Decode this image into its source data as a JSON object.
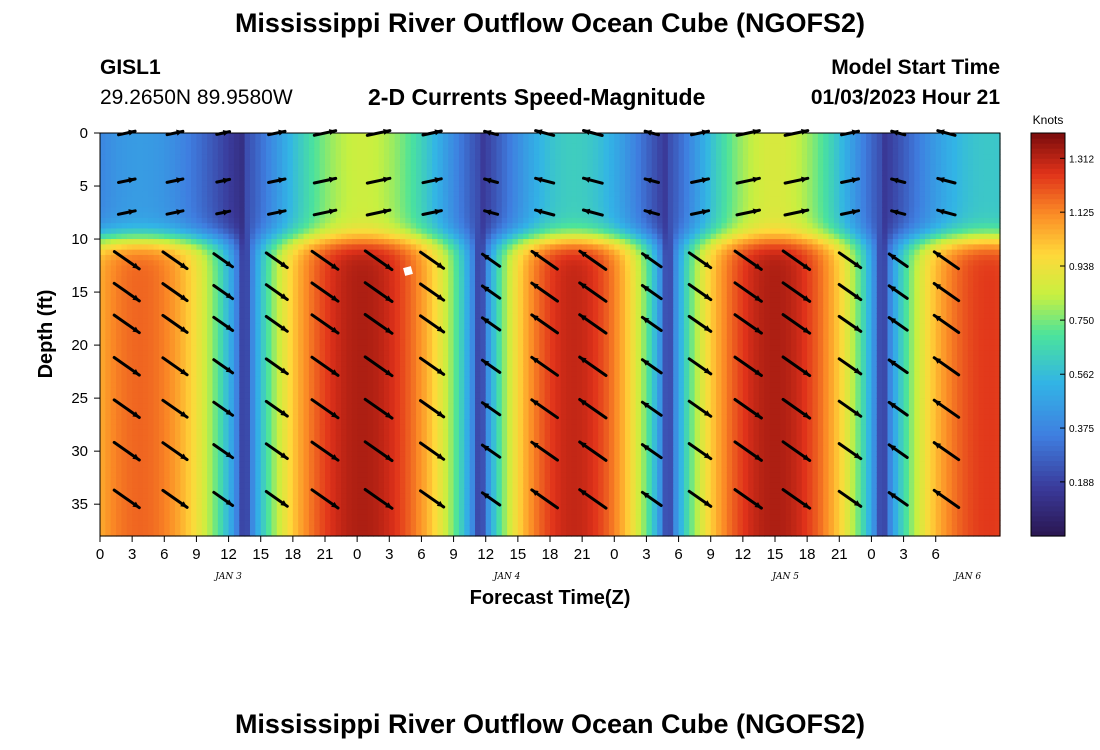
{
  "header": {
    "title": "Mississippi River Outflow Ocean Cube (NGOFS2)",
    "station": "GISL1",
    "coords": "29.2650N  89.9580W",
    "subtitle": "2-D Currents Speed-Magnitude",
    "model_label": "Model Start Time",
    "model_time": "01/03/2023 Hour 21"
  },
  "footer": {
    "title": "Mississippi River Outflow Ocean Cube (NGOFS2)"
  },
  "chart_data": {
    "type": "heatmap",
    "title": "2-D Currents Speed-Magnitude",
    "xlabel": "Forecast Time(Z)",
    "ylabel": "Depth (ft)",
    "xlim": [
      0,
      84
    ],
    "ylim": [
      0,
      38
    ],
    "x_ticks": [
      {
        "t": 0,
        "label": "0"
      },
      {
        "t": 3,
        "label": "3"
      },
      {
        "t": 6,
        "label": "6"
      },
      {
        "t": 9,
        "label": "9"
      },
      {
        "t": 12,
        "label": "12"
      },
      {
        "t": 15,
        "label": "15"
      },
      {
        "t": 18,
        "label": "18"
      },
      {
        "t": 21,
        "label": "21"
      },
      {
        "t": 24,
        "label": "0"
      },
      {
        "t": 27,
        "label": "3"
      },
      {
        "t": 30,
        "label": "6"
      },
      {
        "t": 33,
        "label": "9"
      },
      {
        "t": 36,
        "label": "12"
      },
      {
        "t": 39,
        "label": "15"
      },
      {
        "t": 42,
        "label": "18"
      },
      {
        "t": 45,
        "label": "21"
      },
      {
        "t": 48,
        "label": "0"
      },
      {
        "t": 51,
        "label": "3"
      },
      {
        "t": 54,
        "label": "6"
      },
      {
        "t": 57,
        "label": "9"
      },
      {
        "t": 60,
        "label": "12"
      },
      {
        "t": 63,
        "label": "15"
      },
      {
        "t": 66,
        "label": "18"
      },
      {
        "t": 69,
        "label": "21"
      },
      {
        "t": 72,
        "label": "0"
      },
      {
        "t": 75,
        "label": "3"
      },
      {
        "t": 78,
        "label": "6"
      }
    ],
    "date_labels": [
      {
        "t": 12,
        "label": "JAN 3"
      },
      {
        "t": 38,
        "label": "JAN 4"
      },
      {
        "t": 64,
        "label": "JAN 5"
      },
      {
        "t": 81,
        "label": "JAN 6"
      }
    ],
    "y_ticks": [
      0,
      5,
      10,
      15,
      20,
      25,
      30,
      35
    ],
    "colorbar": {
      "label": "Knots",
      "min": 0.0,
      "max": 1.4,
      "ticks": [
        1.312,
        1.125,
        0.938,
        0.75,
        0.562,
        0.375,
        0.188
      ]
    },
    "field_model": {
      "depth_transition_ft": 10,
      "slack_times_h": [
        13.5,
        35.5,
        53,
        73
      ],
      "period_start_h": -6,
      "periods": [
        {
          "start": -6,
          "end": 13.5,
          "surface_peak": 0.45,
          "deep_peak": 1.18,
          "sign": 1
        },
        {
          "start": 13.5,
          "end": 35.5,
          "surface_peak": 0.85,
          "deep_peak": 1.33,
          "sign": 1
        },
        {
          "start": 35.5,
          "end": 53,
          "surface_peak": 0.62,
          "deep_peak": 1.3,
          "sign": -1
        },
        {
          "start": 53,
          "end": 73,
          "surface_peak": 0.88,
          "deep_peak": 1.33,
          "sign": 1
        },
        {
          "start": 73,
          "end": 93,
          "surface_peak": 0.6,
          "deep_peak": 1.25,
          "sign": -1
        }
      ]
    },
    "vector_depths_ft": [
      0,
      4.5,
      7.5,
      12,
      15,
      18,
      22,
      26,
      30,
      34.5
    ],
    "vector_times_h": [
      2.5,
      7,
      11.5,
      16.5,
      21,
      26,
      31,
      36.5,
      41.5,
      46,
      51.5,
      56,
      60.5,
      65,
      70,
      74.5,
      79
    ]
  }
}
